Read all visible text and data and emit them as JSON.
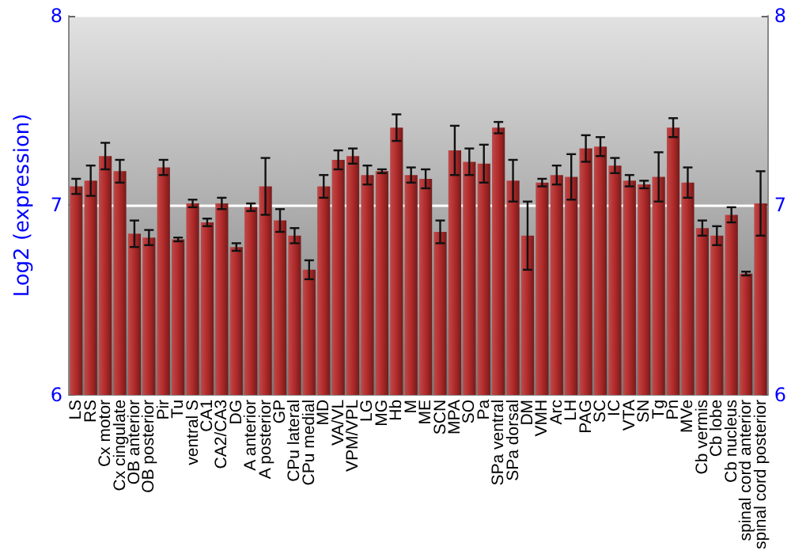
{
  "chart_data": {
    "type": "bar",
    "ylabel": "Log2 (expression)",
    "categories": [
      "LS",
      "RS",
      "Cx motor",
      "Cx cingulate",
      "OB anterior",
      "OB posterior",
      "Pir",
      "Tu",
      "ventral S",
      "CA1",
      "CA2/CA3",
      "DG",
      "A anterior",
      "A posterior",
      "GP",
      "CPu lateral",
      "CPu medial",
      "MD",
      "VA/VL",
      "VPM/VPL",
      "LG",
      "MG",
      "Hb",
      "M",
      "ME",
      "SCN",
      "MPA",
      "SO",
      "Pa",
      "SPa ventral",
      "SPa dorsal",
      "DM",
      "VMH",
      "Arc",
      "LH",
      "PAG",
      "SC",
      "IC",
      "VTA",
      "SN",
      "Tg",
      "Pn",
      "MVe",
      "Cb vermis",
      "Cb lobe",
      "Cb nucleus",
      "spinal cord anterior",
      "spinal cord posterior"
    ],
    "values": [
      7.1,
      7.13,
      7.26,
      7.18,
      6.85,
      6.83,
      7.2,
      6.82,
      7.01,
      6.91,
      7.01,
      6.78,
      6.99,
      7.1,
      6.92,
      6.84,
      6.66,
      7.1,
      7.24,
      7.26,
      7.16,
      7.18,
      7.41,
      7.16,
      7.14,
      6.86,
      7.29,
      7.23,
      7.22,
      7.41,
      7.13,
      6.84,
      7.12,
      7.16,
      7.15,
      7.3,
      7.31,
      7.21,
      7.13,
      7.11,
      7.15,
      7.41,
      7.12,
      6.88,
      6.84,
      6.95,
      6.64,
      7.01
    ],
    "errors": [
      0.04,
      0.08,
      0.07,
      0.06,
      0.07,
      0.04,
      0.04,
      0.01,
      0.02,
      0.02,
      0.03,
      0.02,
      0.02,
      0.15,
      0.06,
      0.04,
      0.05,
      0.06,
      0.05,
      0.04,
      0.05,
      0.01,
      0.07,
      0.04,
      0.05,
      0.06,
      0.13,
      0.07,
      0.1,
      0.03,
      0.11,
      0.18,
      0.02,
      0.05,
      0.12,
      0.07,
      0.05,
      0.04,
      0.03,
      0.02,
      0.13,
      0.05,
      0.08,
      0.04,
      0.05,
      0.04,
      0.01,
      0.17
    ],
    "color": "#b22a2a",
    "ylim": [
      6,
      8
    ],
    "yticks": [
      6,
      7,
      8
    ],
    "y2lim": [
      6,
      8
    ],
    "y2ticks": [
      6,
      7,
      8
    ],
    "grid": "y"
  }
}
